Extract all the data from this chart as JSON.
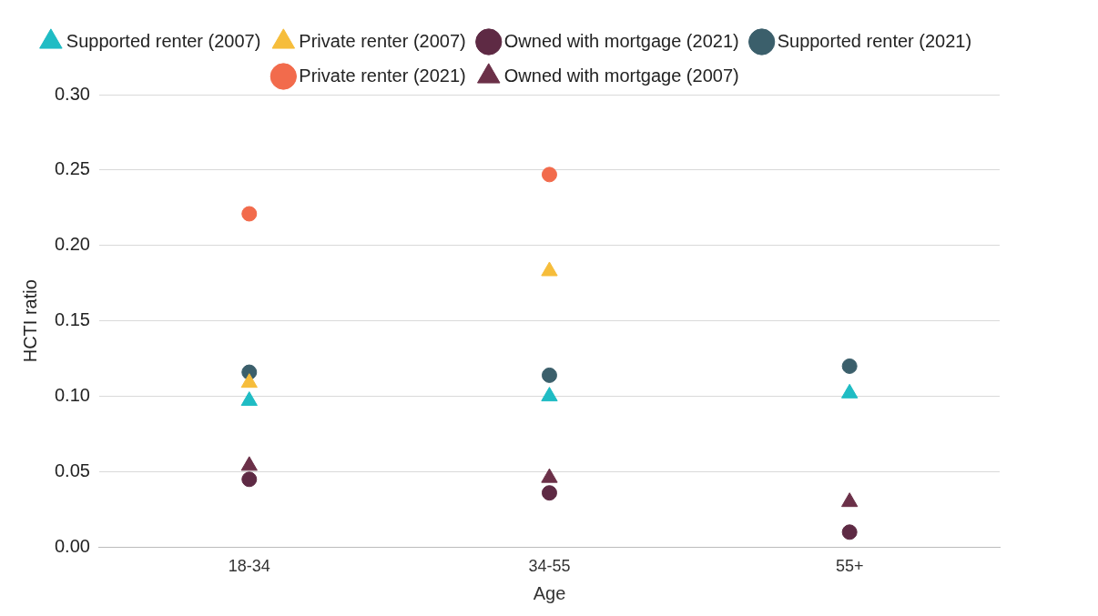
{
  "chart_data": {
    "type": "scatter",
    "xlabel": "Age",
    "ylabel": "HCTI ratio",
    "categories": [
      "18-34",
      "34-55",
      "55+"
    ],
    "ylim": [
      0,
      0.3
    ],
    "yticks": [
      {
        "value": 0,
        "label": "0.00"
      },
      {
        "value": 0.05,
        "label": "0.05"
      },
      {
        "value": 0.1,
        "label": "0.10"
      },
      {
        "value": 0.15,
        "label": "0.15"
      },
      {
        "value": 0.2,
        "label": "0.20"
      },
      {
        "value": 0.25,
        "label": "0.25"
      },
      {
        "value": 0.3,
        "label": "0.30"
      }
    ],
    "grid": "y",
    "legend": "top",
    "series": [
      {
        "name": "Supported renter (2007)",
        "color": "#1fbcc4",
        "marker": "triangle",
        "values": [
          0.097,
          0.1,
          0.102
        ]
      },
      {
        "name": "Private renter (2007)",
        "color": "#f6bd3b",
        "marker": "triangle",
        "values": [
          0.109,
          0.183,
          null
        ]
      },
      {
        "name": "Owned with mortgage (2021)",
        "color": "#5e2a44",
        "marker": "circle",
        "values": [
          0.045,
          0.036,
          0.01
        ]
      },
      {
        "name": "Supported renter (2021)",
        "color": "#3b5f6b",
        "marker": "circle",
        "values": [
          0.116,
          0.114,
          0.12
        ]
      },
      {
        "name": "Private renter (2021)",
        "color": "#f26b4c",
        "marker": "circle",
        "values": [
          0.221,
          0.247,
          null
        ]
      },
      {
        "name": "Owned with mortgage (2007)",
        "color": "#6b3048",
        "marker": "triangle",
        "values": [
          0.054,
          0.046,
          0.03
        ]
      }
    ]
  }
}
